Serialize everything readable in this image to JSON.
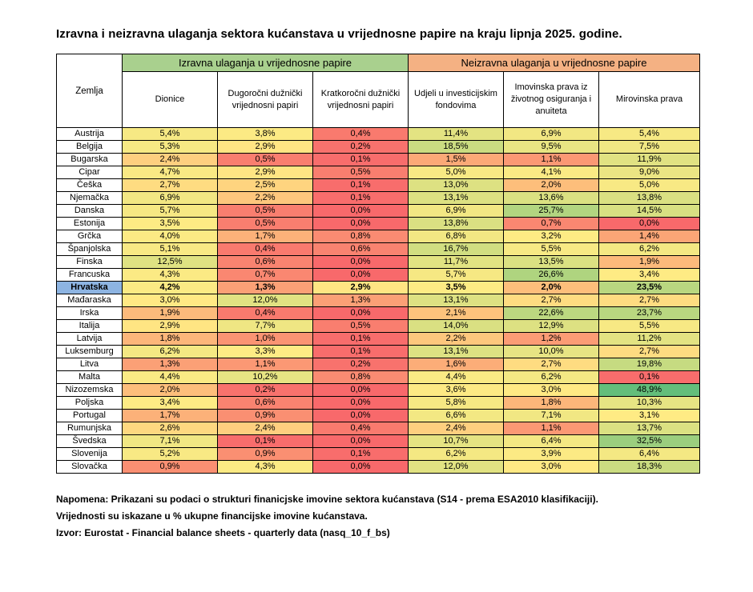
{
  "title": "Izravna i neizravna ulaganja sektora kućanstava u vrijednosne papire na kraju lipnja 2025. godine.",
  "chart_data": {
    "type": "heatmap",
    "title": "Izravna i neizravna ulaganja sektora kućanstava u vrijednosne papire na kraju lipnja 2025. godine.",
    "row_label_header": "Zemlja",
    "column_groups": [
      {
        "label": "Izravna ulaganja u vrijednosne papire",
        "color": "#A9D08E",
        "span": 3
      },
      {
        "label": "Neizravna ulaganja u vrijednosne papire",
        "color": "#F4B183",
        "span": 3
      }
    ],
    "columns": [
      "Dionice",
      "Dugoročni dužnički vrijednosni papiri",
      "Kratkoročni dužnički vrijednosni papiri",
      "Udjeli u investicijskim fondovima",
      "Imovinska prava iz životnog osiguranja i anuiteta",
      "Mirovinska prava"
    ],
    "rows": [
      "Austrija",
      "Belgija",
      "Bugarska",
      "Cipar",
      "Češka",
      "Njemačka",
      "Danska",
      "Estonija",
      "Grčka",
      "Španjolska",
      "Finska",
      "Francuska",
      "Hrvatska",
      "Mađaraska",
      "Irska",
      "Italija",
      "Latvija",
      "Luksemburg",
      "Litva",
      "Malta",
      "Nizozemska",
      "Poljska",
      "Portugal",
      "Rumunjska",
      "Švedska",
      "Slovenija",
      "Slovačka"
    ],
    "values": [
      [
        5.4,
        3.8,
        0.4,
        11.4,
        6.9,
        5.4
      ],
      [
        5.3,
        2.9,
        0.2,
        18.5,
        9.5,
        7.5
      ],
      [
        2.4,
        0.5,
        0.1,
        1.5,
        1.1,
        11.9
      ],
      [
        4.7,
        2.9,
        0.5,
        5.0,
        4.1,
        9.0
      ],
      [
        2.7,
        2.5,
        0.1,
        13.0,
        2.0,
        5.0
      ],
      [
        6.9,
        2.2,
        0.1,
        13.1,
        13.6,
        13.8
      ],
      [
        5.7,
        0.5,
        0.0,
        6.9,
        25.7,
        14.5
      ],
      [
        3.5,
        0.5,
        0.0,
        13.8,
        0.7,
        0.0
      ],
      [
        4.0,
        1.7,
        0.8,
        6.8,
        3.2,
        1.4
      ],
      [
        5.1,
        0.4,
        0.6,
        16.7,
        5.5,
        6.2
      ],
      [
        12.5,
        0.6,
        0.0,
        11.7,
        13.5,
        1.9
      ],
      [
        4.3,
        0.7,
        0.0,
        5.7,
        26.6,
        3.4
      ],
      [
        4.2,
        1.3,
        2.9,
        3.5,
        2.0,
        23.5
      ],
      [
        3.0,
        12.0,
        1.3,
        13.1,
        2.7,
        2.7
      ],
      [
        1.9,
        0.4,
        0.0,
        2.1,
        22.6,
        23.7
      ],
      [
        2.9,
        7.7,
        0.5,
        14.0,
        12.9,
        5.5
      ],
      [
        1.8,
        1.0,
        0.1,
        2.2,
        1.2,
        11.2
      ],
      [
        6.2,
        3.3,
        0.1,
        13.1,
        10.0,
        2.7
      ],
      [
        1.3,
        1.1,
        0.2,
        1.6,
        2.7,
        19.8
      ],
      [
        4.4,
        10.2,
        0.8,
        4.4,
        6.2,
        0.1
      ],
      [
        2.0,
        0.2,
        0.0,
        3.6,
        3.0,
        48.9
      ],
      [
        3.4,
        0.6,
        0.0,
        5.8,
        1.8,
        10.3
      ],
      [
        1.7,
        0.9,
        0.0,
        6.6,
        7.1,
        3.1
      ],
      [
        2.6,
        2.4,
        0.4,
        2.4,
        1.1,
        13.7
      ],
      [
        7.1,
        0.1,
        0.0,
        10.7,
        6.4,
        32.5
      ],
      [
        5.2,
        0.9,
        0.1,
        6.2,
        3.9,
        6.4
      ],
      [
        0.9,
        4.3,
        0.0,
        12.0,
        3.0,
        18.3
      ]
    ],
    "highlighted_row": "Hrvatska",
    "value_format": "percent_comma_decimal_1dp",
    "color_scale": {
      "min_color": "#F8696B",
      "mid_color": "#FFEB84",
      "max_color": "#63BE7B",
      "min": "lowest value",
      "mid": "median of all values",
      "max": "highest value"
    },
    "legend": "none",
    "grid": "black 1px cell borders"
  },
  "colors": {
    "direct_group_header": "#A9D08E",
    "indirect_group_header": "#F4B183",
    "highlight_row_country_cell": "#8DB4E2",
    "table_border": "#000000",
    "background": "#FFFFFF"
  },
  "notes": [
    "Napomena: Prikazani su podaci o strukturi finanicjske imovine sektora kućanstava (S14 - prema ESA2010 klasifikaciji).",
    "Vrijednosti su iskazane u % ukupne financijske imovine kućanstava.",
    "Izvor: Eurostat - Financial balance sheets - quarterly data (nasq_10_f_bs)"
  ]
}
